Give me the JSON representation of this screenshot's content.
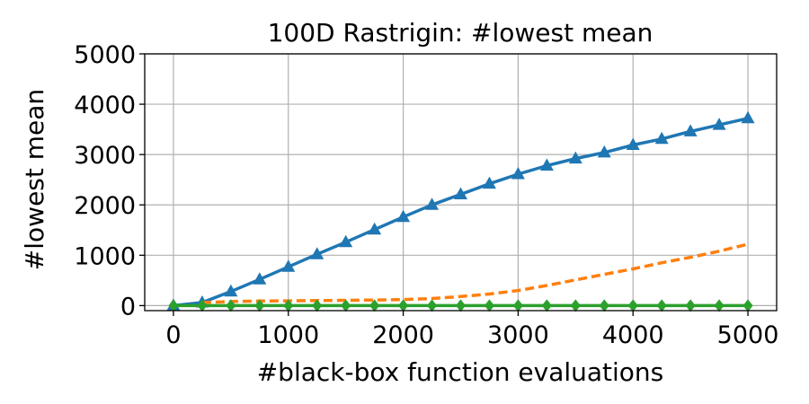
{
  "chart_data": {
    "type": "line",
    "title": "100D Rastrigin: #lowest mean",
    "xlabel": "#black-box function evaluations",
    "ylabel": "#lowest mean",
    "xlim": [
      -250,
      5250
    ],
    "ylim": [
      -100,
      5000
    ],
    "xticks": [
      0,
      1000,
      2000,
      3000,
      4000,
      5000
    ],
    "yticks": [
      0,
      1000,
      2000,
      3000,
      4000,
      5000
    ],
    "grid": true,
    "legend": "none",
    "series": [
      {
        "color": "#1f77b4",
        "line_style": "solid",
        "marker": "triangle",
        "x": [
          0,
          250,
          500,
          750,
          1000,
          1250,
          1500,
          1750,
          2000,
          2250,
          2500,
          2750,
          3000,
          3250,
          3500,
          3750,
          4000,
          4250,
          4500,
          4750,
          5000
        ],
        "y": [
          0,
          60,
          280,
          520,
          770,
          1020,
          1260,
          1510,
          1760,
          2000,
          2210,
          2420,
          2610,
          2780,
          2920,
          3040,
          3190,
          3310,
          3460,
          3590,
          3720
        ]
      },
      {
        "color": "#ff7f0e",
        "line_style": "dashed",
        "marker": "none",
        "x": [
          250,
          500,
          750,
          1000,
          1250,
          1500,
          1750,
          2000,
          2250,
          2500,
          2750,
          3000,
          3250,
          3500,
          3750,
          4000,
          4250,
          4500,
          4750,
          5000
        ],
        "y": [
          60,
          80,
          90,
          95,
          100,
          105,
          110,
          120,
          140,
          180,
          230,
          300,
          400,
          510,
          620,
          730,
          850,
          960,
          1080,
          1220
        ]
      },
      {
        "color": "#2ca02c",
        "line_style": "solid",
        "marker": "diamond",
        "x": [
          0,
          250,
          500,
          750,
          1000,
          1250,
          1500,
          1750,
          2000,
          2250,
          2500,
          2750,
          3000,
          3250,
          3500,
          3750,
          4000,
          4250,
          4500,
          4750,
          5000
        ],
        "y": [
          0,
          0,
          0,
          0,
          0,
          0,
          0,
          0,
          0,
          0,
          0,
          0,
          0,
          0,
          0,
          0,
          0,
          0,
          0,
          0,
          0
        ]
      }
    ]
  }
}
